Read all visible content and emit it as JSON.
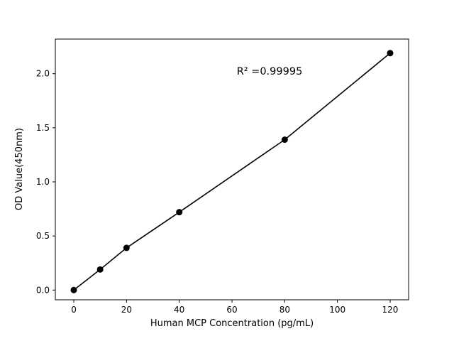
{
  "chart_data": {
    "type": "scatter",
    "title": "",
    "xlabel": "Human MCP Concentration (pg/mL)",
    "ylabel": "OD Value(450nm)",
    "annotation": "R² =0.99995",
    "x": [
      0,
      10,
      20,
      40,
      80,
      120
    ],
    "y": [
      0.0,
      0.19,
      0.39,
      0.72,
      1.39,
      2.19
    ],
    "xlim": [
      -7,
      127
    ],
    "ylim": [
      -0.09,
      2.32
    ],
    "xticks": [
      0,
      20,
      40,
      60,
      80,
      100,
      120
    ],
    "yticks": [
      0.0,
      0.5,
      1.0,
      1.5,
      2.0
    ],
    "grid": false,
    "legend": "none",
    "line": true,
    "marker_color": "#000000",
    "line_color": "#000000",
    "background_color": "#ffffff"
  }
}
